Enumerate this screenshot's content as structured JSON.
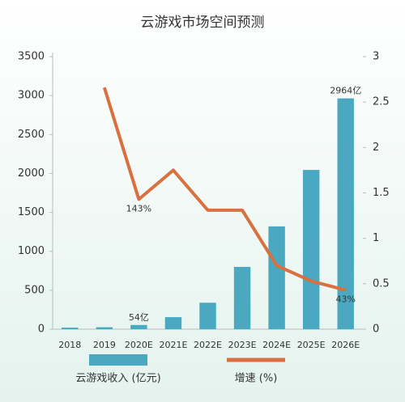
{
  "chart_data": {
    "type": "bar",
    "title": "云游戏市场空间预测",
    "categories": [
      "2018",
      "2019",
      "2020E",
      "2021E",
      "2022E",
      "2023E",
      "2024E",
      "2025E",
      "2026E"
    ],
    "series": [
      {
        "name": "云游戏收入 (亿元)",
        "type": "bar",
        "axis": "y",
        "color": "#4aa8c0",
        "values": [
          20,
          25,
          54,
          155,
          340,
          800,
          1320,
          2045,
          2964
        ],
        "value_labels": [
          null,
          null,
          "54亿",
          null,
          null,
          null,
          null,
          null,
          "2964亿"
        ]
      },
      {
        "name": "增速 (%)",
        "type": "line",
        "axis": "y2",
        "color": "#d9703f",
        "values": [
          null,
          2.66,
          1.43,
          1.75,
          1.31,
          1.31,
          0.7,
          0.53,
          0.43
        ],
        "value_labels": [
          null,
          null,
          "143%",
          null,
          null,
          null,
          null,
          null,
          "43%"
        ]
      }
    ],
    "ylim": [
      0,
      3500
    ],
    "yticks": [
      0,
      500,
      1000,
      1500,
      2000,
      2500,
      3000,
      3500
    ],
    "y2lim": [
      0,
      3
    ],
    "y2ticks": [
      0,
      0.5,
      1,
      1.5,
      2,
      2.5,
      3
    ],
    "grid": false,
    "legend": "bottom"
  }
}
